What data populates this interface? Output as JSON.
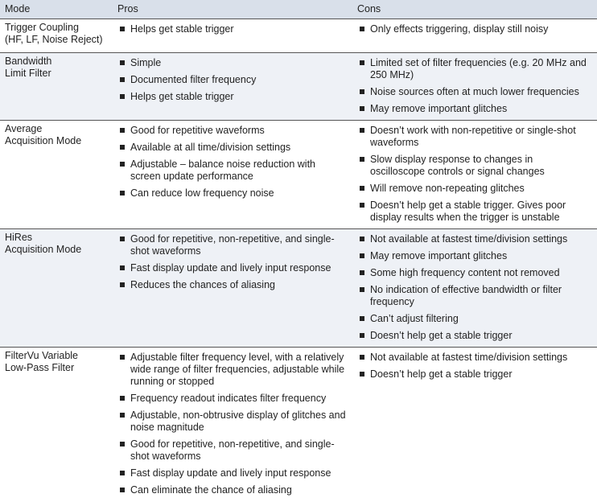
{
  "header": {
    "mode": "Mode",
    "pros": "Pros",
    "cons": "Cons"
  },
  "rows": [
    {
      "mode": [
        "Trigger Coupling",
        "(HF, LF, Noise Reject)"
      ],
      "pros": [
        "Helps get stable trigger"
      ],
      "cons": [
        "Only effects triggering, display still noisy"
      ]
    },
    {
      "mode": [
        "Bandwidth",
        "Limit Filter"
      ],
      "pros": [
        "Simple",
        "Documented filter frequency",
        "Helps get stable trigger"
      ],
      "cons": [
        "Limited set of filter frequencies (e.g. 20 MHz and 250 MHz)",
        "Noise sources often at much lower frequencies",
        "May remove important glitches"
      ]
    },
    {
      "mode": [
        "Average",
        "Acquisition Mode"
      ],
      "pros": [
        "Good for repetitive waveforms",
        "Available at all time/division settings",
        "Adjustable – balance noise reduction with screen update performance",
        "Can reduce low frequency noise"
      ],
      "cons": [
        "Doesn’t work with non-repetitive or single-shot waveforms",
        "Slow display response to changes in oscilloscope controls or signal changes",
        "Will remove non-repeating glitches",
        "Doesn’t help get a stable trigger. Gives poor display results when the trigger is unstable"
      ]
    },
    {
      "mode": [
        "HiRes",
        "Acquisition Mode"
      ],
      "pros": [
        "Good for repetitive, non-repetitive, and single-shot waveforms",
        "Fast display update and lively input response",
        "Reduces the chances of aliasing"
      ],
      "cons": [
        "Not available at fastest time/division settings",
        "May remove important glitches",
        "Some high frequency content not removed",
        "No indication of effective bandwidth or filter frequency",
        "Can’t adjust filtering",
        "Doesn’t help get a stable trigger"
      ]
    },
    {
      "mode": [
        "FilterVu Variable",
        "Low-Pass Filter"
      ],
      "pros": [
        "Adjustable filter frequency level, with a relatively wide range of filter frequencies, adjustable while running or stopped",
        "Frequency readout indicates filter frequency",
        "Adjustable, non-obtrusive display of glitches and noise magnitude",
        "Good for repetitive, non-repetitive, and single-shot waveforms",
        "Fast display update and lively input response",
        "Can eliminate the chance of aliasing"
      ],
      "cons": [
        "Not available at fastest time/division settings",
        "Doesn’t help get a stable trigger"
      ]
    }
  ]
}
